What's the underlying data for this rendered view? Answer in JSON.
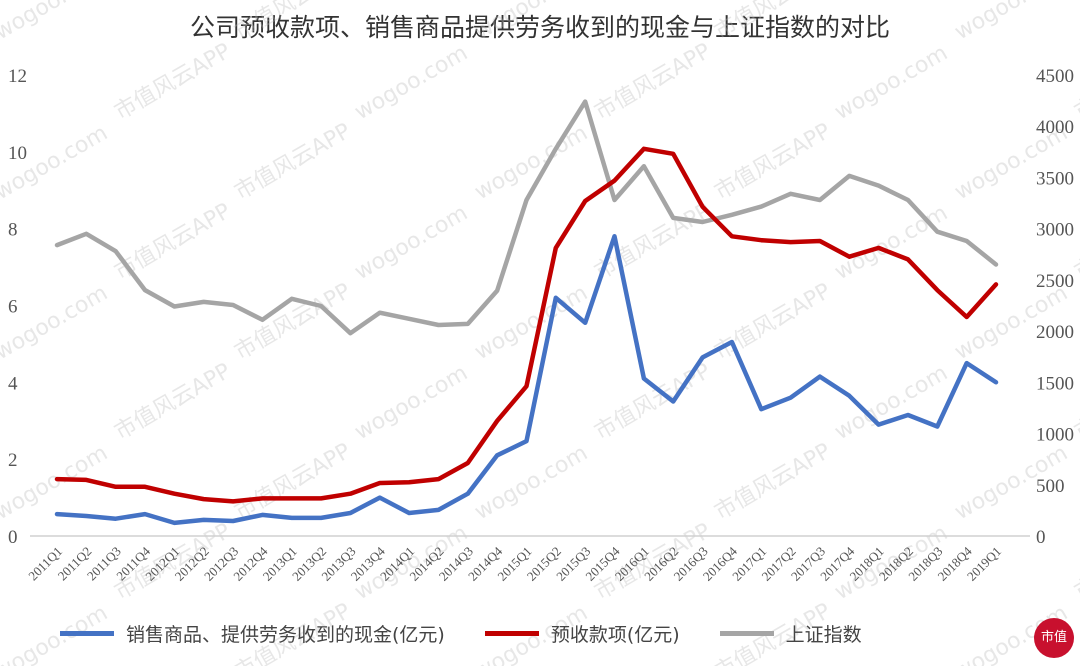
{
  "chart_data": {
    "type": "line",
    "title": "公司预收款项、销售商品提供劳务收到的现金与上证指数的对比",
    "categories": [
      "2011Q1",
      "2011Q2",
      "2011Q3",
      "2011Q4",
      "2012Q1",
      "2012Q2",
      "2012Q3",
      "2012Q4",
      "2013Q1",
      "2013Q2",
      "2013Q3",
      "2013Q4",
      "2014Q1",
      "2014Q2",
      "2014Q3",
      "2014Q4",
      "2015Q1",
      "2015Q2",
      "2015Q3",
      "2015Q4",
      "2016Q1",
      "2016Q2",
      "2016Q3",
      "2016Q4",
      "2017Q1",
      "2017Q2",
      "2017Q3",
      "2017Q4",
      "2018Q1",
      "2018Q2",
      "2018Q3",
      "2018Q4",
      "2019Q1"
    ],
    "y_left": {
      "range": [
        0,
        12
      ],
      "ticks": [
        0,
        2,
        4,
        6,
        8,
        10,
        12
      ]
    },
    "y_right": {
      "range": [
        0,
        4500
      ],
      "ticks": [
        0,
        500,
        1000,
        1500,
        2000,
        2500,
        3000,
        3500,
        4000,
        4500
      ]
    },
    "grid": false,
    "legend_position": "bottom",
    "series": [
      {
        "name": "销售商品、提供劳务收到的现金(亿元)",
        "axis": "left",
        "color": "#4472c4",
        "values": [
          0.57,
          0.52,
          0.45,
          0.57,
          0.34,
          0.42,
          0.39,
          0.55,
          0.47,
          0.47,
          0.6,
          1.0,
          0.6,
          0.68,
          1.1,
          2.1,
          2.47,
          6.2,
          5.55,
          7.8,
          4.1,
          3.5,
          4.65,
          5.05,
          3.3,
          3.6,
          4.15,
          3.65,
          2.9,
          3.15,
          2.85,
          4.5,
          4.0
        ]
      },
      {
        "name": "预收款项(亿元)",
        "axis": "left",
        "color": "#c00000",
        "values": [
          1.48,
          1.46,
          1.28,
          1.28,
          1.1,
          0.96,
          0.9,
          0.98,
          0.98,
          0.98,
          1.1,
          1.38,
          1.4,
          1.48,
          1.9,
          3.0,
          3.9,
          7.5,
          8.72,
          9.25,
          10.08,
          9.95,
          8.57,
          7.8,
          7.7,
          7.65,
          7.68,
          7.27,
          7.5,
          7.2,
          6.4,
          5.7,
          6.55
        ]
      },
      {
        "name": "上证指数",
        "axis": "right",
        "color": "#a5a5a5",
        "values": [
          2840,
          2950,
          2780,
          2400,
          2240,
          2285,
          2255,
          2110,
          2315,
          2245,
          1980,
          2180,
          2120,
          2060,
          2070,
          2395,
          3280,
          3780,
          4240,
          3280,
          3610,
          3105,
          3065,
          3135,
          3215,
          3340,
          3280,
          3515,
          3420,
          3280,
          2970,
          2880,
          2650
        ]
      }
    ]
  },
  "watermark": {
    "text_a": "市值风云APP",
    "text_b": "wogoo.com"
  },
  "logo": {
    "text": "市值"
  }
}
